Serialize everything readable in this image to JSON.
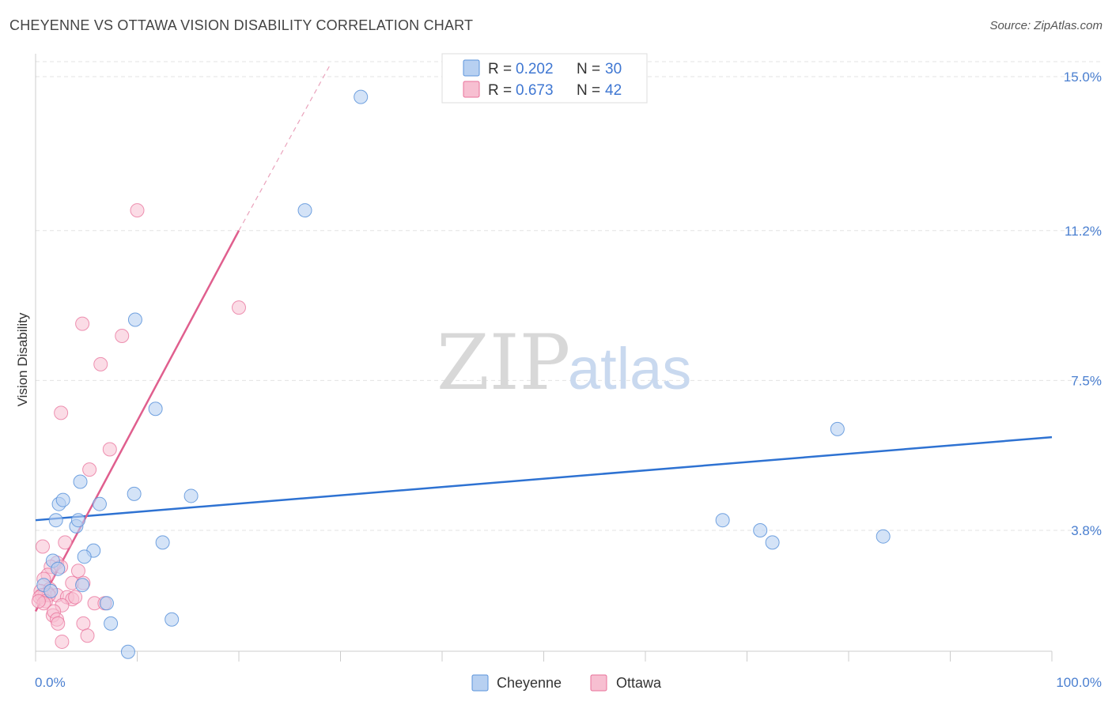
{
  "header": {
    "title": "CHEYENNE VS OTTAWA VISION DISABILITY CORRELATION CHART",
    "source": "Source: ZipAtlas.com"
  },
  "watermark": {
    "part1": "ZIP",
    "part2": "atlas"
  },
  "legend": {
    "r_label": "R =",
    "n_label": "N =",
    "entries": [
      {
        "r": "0.202",
        "n": "30"
      },
      {
        "r": "0.673",
        "n": "42"
      }
    ]
  },
  "colors": {
    "cheyenne": "#5b93db",
    "cheyenne_fill": "#b7d0f1",
    "ottawa": "#e8709a",
    "ottawa_fill": "#f7bfd1",
    "value_text": "#3f77d2",
    "grid": "#e3e3e3"
  },
  "chart_data": {
    "type": "scatter",
    "title": "CHEYENNE VS OTTAWA VISION DISABILITY CORRELATION CHART",
    "xlabel": "",
    "ylabel": "Vision Disability",
    "xlim": [
      0,
      100
    ],
    "ylim": [
      0,
      15.5
    ],
    "x_tick_labels": [
      {
        "value": 0,
        "label": "0.0%"
      },
      {
        "value": 100,
        "label": "100.0%"
      }
    ],
    "y_ticks": [
      {
        "value": 3.8,
        "label": "3.8%"
      },
      {
        "value": 7.5,
        "label": "7.5%"
      },
      {
        "value": 11.2,
        "label": "11.2%"
      },
      {
        "value": 15.0,
        "label": "15.0%"
      }
    ],
    "grid": true,
    "legend_position": "top-center",
    "series": [
      {
        "name": "Cheyenne",
        "color": "#5b93db",
        "points": [
          [
            32.0,
            14.5
          ],
          [
            26.5,
            11.7
          ],
          [
            9.8,
            9.0
          ],
          [
            11.8,
            6.8
          ],
          [
            78.9,
            6.3
          ],
          [
            4.4,
            5.0
          ],
          [
            9.7,
            4.7
          ],
          [
            15.3,
            4.65
          ],
          [
            2.3,
            4.45
          ],
          [
            2.7,
            4.55
          ],
          [
            6.3,
            4.45
          ],
          [
            2.0,
            4.05
          ],
          [
            4.0,
            3.9
          ],
          [
            4.2,
            4.05
          ],
          [
            67.6,
            4.05
          ],
          [
            71.3,
            3.8
          ],
          [
            83.4,
            3.65
          ],
          [
            72.5,
            3.5
          ],
          [
            12.5,
            3.5
          ],
          [
            5.7,
            3.3
          ],
          [
            4.8,
            3.15
          ],
          [
            1.7,
            3.05
          ],
          [
            2.2,
            2.85
          ],
          [
            4.6,
            2.45
          ],
          [
            7.0,
            2.0
          ],
          [
            13.4,
            1.6
          ],
          [
            7.4,
            1.5
          ],
          [
            9.1,
            0.8
          ],
          [
            0.8,
            2.45
          ],
          [
            1.5,
            2.3
          ]
        ],
        "trend": {
          "x1": 0.0,
          "y1": 4.05,
          "x2": 100.0,
          "y2": 6.1
        }
      },
      {
        "name": "Ottawa",
        "color": "#e8709a",
        "points": [
          [
            10.0,
            11.7
          ],
          [
            20.0,
            9.3
          ],
          [
            4.6,
            8.9
          ],
          [
            8.5,
            8.6
          ],
          [
            6.4,
            7.9
          ],
          [
            2.5,
            6.7
          ],
          [
            7.3,
            5.8
          ],
          [
            5.3,
            5.3
          ],
          [
            0.7,
            3.4
          ],
          [
            2.9,
            3.5
          ],
          [
            2.1,
            3.0
          ],
          [
            1.5,
            2.9
          ],
          [
            2.5,
            2.9
          ],
          [
            4.2,
            2.8
          ],
          [
            1.2,
            2.7
          ],
          [
            0.8,
            2.6
          ],
          [
            3.6,
            2.5
          ],
          [
            4.7,
            2.5
          ],
          [
            1.4,
            2.35
          ],
          [
            0.5,
            2.3
          ],
          [
            1.2,
            2.25
          ],
          [
            2.1,
            2.2
          ],
          [
            0.9,
            2.2
          ],
          [
            3.1,
            2.15
          ],
          [
            3.6,
            2.1
          ],
          [
            0.6,
            2.2
          ],
          [
            1.3,
            2.2
          ],
          [
            0.4,
            2.15
          ],
          [
            3.9,
            2.15
          ],
          [
            1.0,
            2.05
          ],
          [
            2.6,
            1.95
          ],
          [
            5.8,
            2.0
          ],
          [
            6.8,
            2.0
          ],
          [
            0.8,
            2.0
          ],
          [
            1.7,
            1.7
          ],
          [
            1.8,
            1.8
          ],
          [
            2.1,
            1.6
          ],
          [
            4.7,
            1.5
          ],
          [
            2.2,
            1.5
          ],
          [
            5.1,
            1.2
          ],
          [
            2.6,
            1.05
          ],
          [
            0.3,
            2.05
          ]
        ],
        "trend": {
          "x1": 0.0,
          "y1": 1.8,
          "x2": 20.0,
          "y2": 11.2
        },
        "trend_extension": {
          "x1": 20.0,
          "y1": 11.2,
          "x2": 29.0,
          "y2": 15.3
        }
      }
    ]
  }
}
